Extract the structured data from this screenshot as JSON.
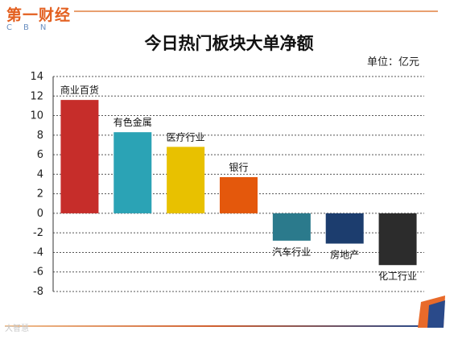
{
  "header": {
    "logo_text": "第一财经",
    "logo_sub": "CBN"
  },
  "chart_data": {
    "type": "bar",
    "title": "今日热门板块大单净额",
    "unit": "单位：亿元",
    "categories": [
      "商业百货",
      "有色金属",
      "医疗行业",
      "银行",
      "汽车行业",
      "房地产",
      "化工行业"
    ],
    "values": [
      11.6,
      8.3,
      6.8,
      3.7,
      -2.8,
      -3.1,
      -5.3
    ],
    "colors": [
      "#c62d2a",
      "#2ba3b5",
      "#e8c100",
      "#e4580c",
      "#2b7a8c",
      "#1c3d6e",
      "#2c2c2c"
    ],
    "ylim": [
      -8,
      14
    ],
    "yticks": [
      "14",
      "12",
      "10",
      "8",
      "6",
      "4",
      "2",
      "0",
      "-2",
      "-4",
      "-6",
      "-8"
    ],
    "grid": true,
    "xlabel": "",
    "ylabel": ""
  },
  "footer": {
    "watermark": "大智慧"
  }
}
